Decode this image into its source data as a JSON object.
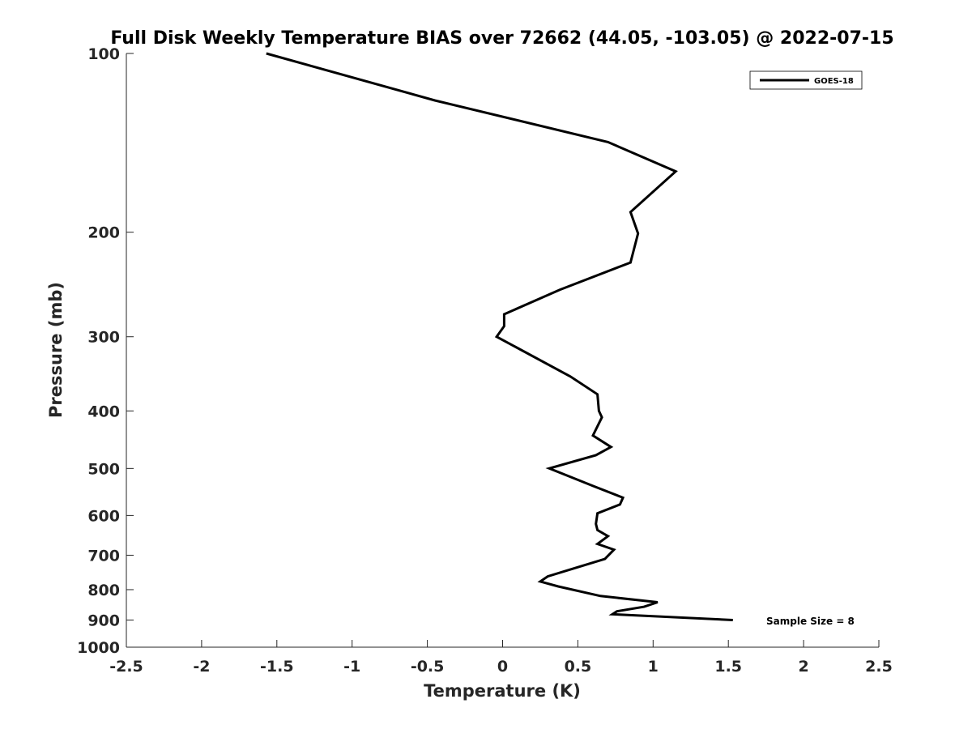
{
  "chart_data": {
    "type": "line",
    "title": "Full Disk Weekly Temperature BIAS over 72662 (44.05, -103.05) @ 2022-07-15",
    "xlabel": "Temperature (K)",
    "ylabel": "Pressure (mb)",
    "xlim": [
      -2.5,
      2.5
    ],
    "ylim": [
      100,
      1000
    ],
    "y_scale": "log",
    "y_reversed": true,
    "x_ticks": [
      "-2.5",
      "-2",
      "-1.5",
      "-1",
      "-0.5",
      "0",
      "0.5",
      "1",
      "1.5",
      "2",
      "2.5"
    ],
    "x_tick_values": [
      -2.5,
      -2,
      -1.5,
      -1,
      -0.5,
      0,
      0.5,
      1,
      1.5,
      2,
      2.5
    ],
    "y_ticks": [
      "100",
      "200",
      "300",
      "400",
      "500",
      "600",
      "700",
      "800",
      "900",
      "1000"
    ],
    "y_tick_values": [
      100,
      200,
      300,
      400,
      500,
      600,
      700,
      800,
      900,
      1000
    ],
    "grid": false,
    "legend_position": "top-right",
    "annotation": "Sample Size = 8",
    "series": [
      {
        "name": "GOES-18",
        "color": "#000000",
        "points": [
          {
            "x": -1.57,
            "p": 100
          },
          {
            "x": -0.45,
            "p": 120
          },
          {
            "x": 0.7,
            "p": 141
          },
          {
            "x": 1.15,
            "p": 158
          },
          {
            "x": 0.85,
            "p": 185
          },
          {
            "x": 0.9,
            "p": 201
          },
          {
            "x": 0.85,
            "p": 225
          },
          {
            "x": 0.38,
            "p": 250
          },
          {
            "x": 0.01,
            "p": 275
          },
          {
            "x": 0.01,
            "p": 288
          },
          {
            "x": -0.04,
            "p": 300
          },
          {
            "x": 0.45,
            "p": 350
          },
          {
            "x": 0.63,
            "p": 375
          },
          {
            "x": 0.64,
            "p": 400
          },
          {
            "x": 0.66,
            "p": 410
          },
          {
            "x": 0.6,
            "p": 440
          },
          {
            "x": 0.72,
            "p": 460
          },
          {
            "x": 0.62,
            "p": 475
          },
          {
            "x": 0.31,
            "p": 500
          },
          {
            "x": 0.6,
            "p": 535
          },
          {
            "x": 0.8,
            "p": 560
          },
          {
            "x": 0.78,
            "p": 575
          },
          {
            "x": 0.63,
            "p": 595
          },
          {
            "x": 0.62,
            "p": 620
          },
          {
            "x": 0.63,
            "p": 635
          },
          {
            "x": 0.7,
            "p": 650
          },
          {
            "x": 0.63,
            "p": 670
          },
          {
            "x": 0.74,
            "p": 685
          },
          {
            "x": 0.68,
            "p": 710
          },
          {
            "x": 0.45,
            "p": 740
          },
          {
            "x": 0.3,
            "p": 760
          },
          {
            "x": 0.25,
            "p": 775
          },
          {
            "x": 0.37,
            "p": 790
          },
          {
            "x": 0.65,
            "p": 820
          },
          {
            "x": 1.03,
            "p": 840
          },
          {
            "x": 0.94,
            "p": 855
          },
          {
            "x": 0.76,
            "p": 870
          },
          {
            "x": 0.73,
            "p": 880
          },
          {
            "x": 1.53,
            "p": 900
          }
        ]
      }
    ]
  }
}
